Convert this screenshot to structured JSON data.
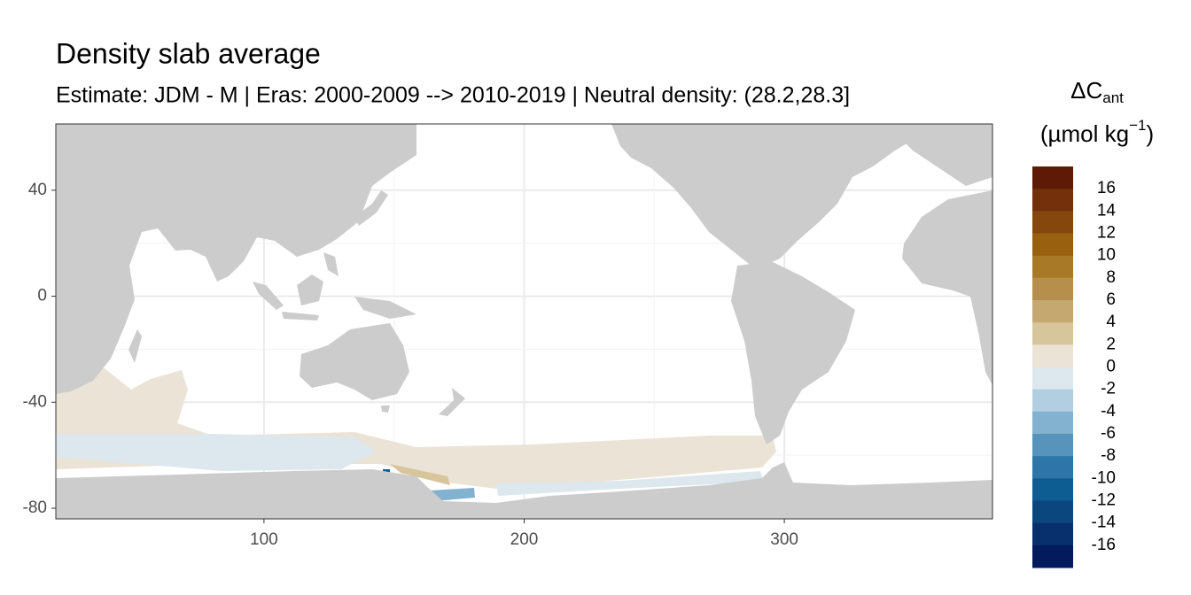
{
  "chart_data": {
    "type": "heatmap",
    "title": "Density slab average",
    "subtitle": "Estimate: JDM - M | Eras: 2000-2009 --> 2010-2019 | Neutral density: (28.2,28.3]",
    "xlim": [
      20,
      380
    ],
    "ylim": [
      -84,
      65
    ],
    "xticks": [
      100,
      200,
      300
    ],
    "yticks": [
      40,
      0,
      -40,
      -80
    ],
    "grid": true,
    "values": [
      1,
      -1,
      -1,
      3,
      -5,
      -11,
      -11
    ],
    "legend": {
      "title": [
        "ΔC",
        "ant",
        "(µmol kg",
        "−1",
        ")"
      ],
      "limits": [
        -18,
        18
      ],
      "breaks": [
        16,
        14,
        12,
        10,
        8,
        6,
        4,
        2,
        0,
        -2,
        -4,
        -6,
        -8,
        -10,
        -12,
        -14,
        -16
      ],
      "colors": [
        "#5e1a05",
        "#73300a",
        "#86470c",
        "#98600f",
        "#a87a27",
        "#b58f4b",
        "#c4a870",
        "#d7c59c",
        "#ebe3d6",
        "#dde8ee",
        "#b1cfe0",
        "#82b2cf",
        "#5694bb",
        "#2d76a8",
        "#0d5d93",
        "#0b467f",
        "#07306d",
        "#031a5c"
      ]
    }
  }
}
